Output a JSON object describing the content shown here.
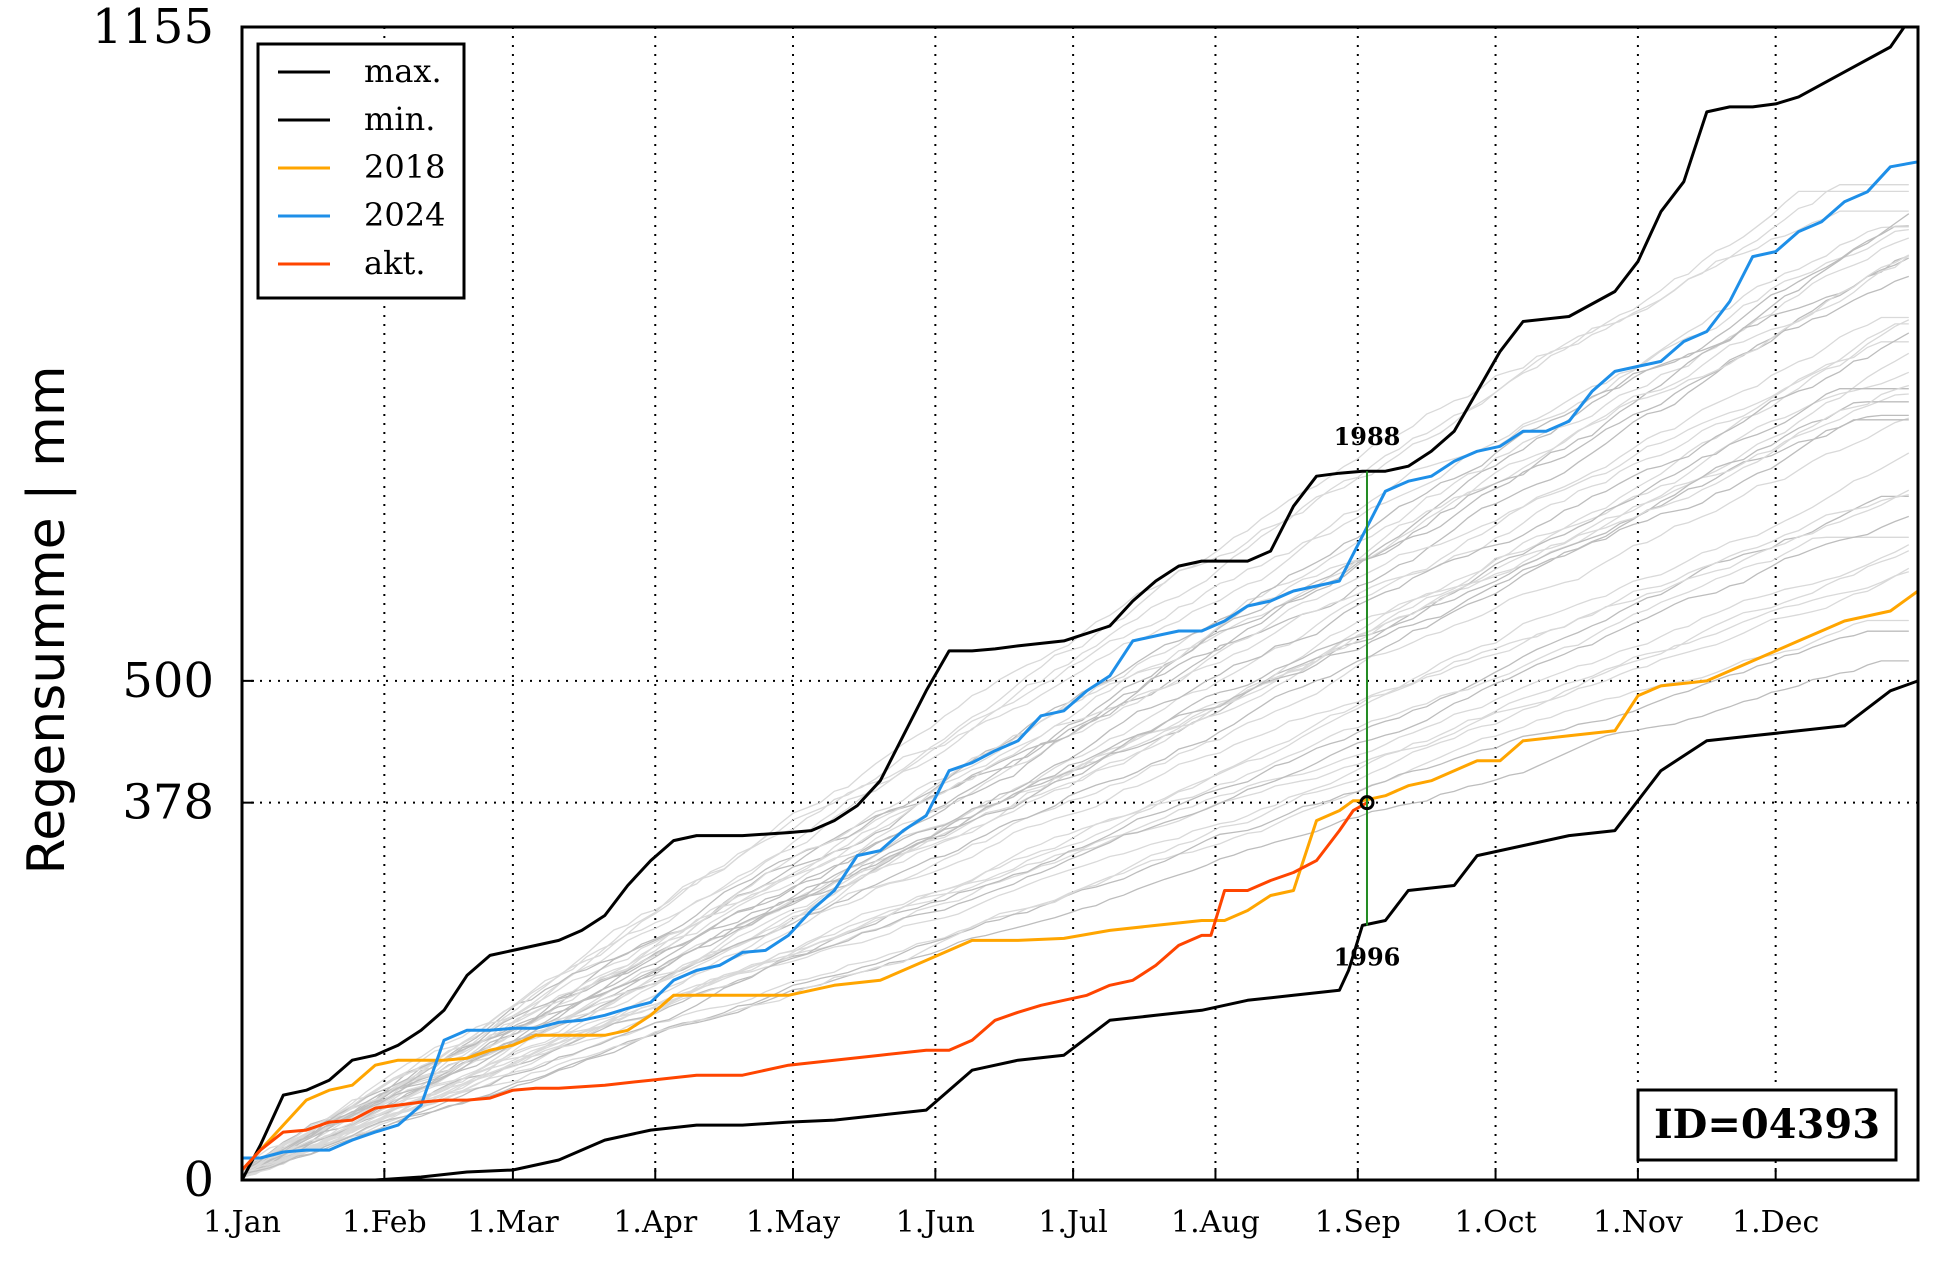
{
  "chart_data": {
    "type": "line",
    "title": "",
    "xlabel": "",
    "ylabel": "Regensumme | mm",
    "xlim": [
      1,
      366
    ],
    "ylim": [
      0,
      1155
    ],
    "x_ticks": [
      {
        "day": 1,
        "label": "1.Jan"
      },
      {
        "day": 32,
        "label": "1.Feb"
      },
      {
        "day": 60,
        "label": "1.Mar"
      },
      {
        "day": 91,
        "label": "1.Apr"
      },
      {
        "day": 121,
        "label": "1.May"
      },
      {
        "day": 152,
        "label": "1.Jun"
      },
      {
        "day": 182,
        "label": "1.Jul"
      },
      {
        "day": 213,
        "label": "1.Aug"
      },
      {
        "day": 244,
        "label": "1.Sep"
      },
      {
        "day": 274,
        "label": "1.Oct"
      },
      {
        "day": 305,
        "label": "1.Nov"
      },
      {
        "day": 335,
        "label": "1.Dec"
      }
    ],
    "y_ticks": [
      {
        "value": 0,
        "label": "0"
      },
      {
        "value": 378,
        "label": "378"
      },
      {
        "value": 500,
        "label": "500"
      },
      {
        "value": 1155,
        "label": "1155"
      }
    ],
    "grid": true,
    "legend_position": "top-left",
    "series": [
      {
        "name": "max.",
        "color": "#000000",
        "x": [
          1,
          5,
          10,
          15,
          20,
          25,
          30,
          35,
          40,
          45,
          50,
          55,
          60,
          65,
          70,
          75,
          80,
          85,
          90,
          95,
          100,
          110,
          120,
          125,
          130,
          135,
          140,
          145,
          150,
          155,
          160,
          165,
          170,
          180,
          190,
          195,
          200,
          205,
          210,
          215,
          220,
          225,
          230,
          235,
          240,
          245,
          250,
          255,
          260,
          265,
          270,
          275,
          280,
          290,
          300,
          305,
          310,
          315,
          320,
          325,
          330,
          335,
          340,
          350,
          360,
          363,
          366
        ],
        "values": [
          0,
          35,
          85,
          90,
          100,
          120,
          125,
          135,
          150,
          170,
          205,
          225,
          230,
          235,
          240,
          250,
          265,
          295,
          320,
          340,
          345,
          345,
          348,
          350,
          360,
          375,
          400,
          445,
          490,
          530,
          530,
          532,
          535,
          540,
          555,
          580,
          600,
          615,
          620,
          620,
          620,
          630,
          675,
          705,
          708,
          710,
          710,
          715,
          730,
          750,
          790,
          830,
          860,
          865,
          890,
          920,
          970,
          1000,
          1070,
          1075,
          1075,
          1078,
          1085,
          1110,
          1135,
          1155,
          1155
        ]
      },
      {
        "name": "min.",
        "color": "#000000",
        "x": [
          1,
          20,
          30,
          40,
          50,
          60,
          70,
          80,
          90,
          100,
          110,
          120,
          130,
          140,
          150,
          155,
          160,
          170,
          180,
          190,
          200,
          210,
          220,
          230,
          240,
          242,
          245,
          250,
          255,
          265,
          270,
          275,
          280,
          290,
          300,
          305,
          310,
          320,
          330,
          340,
          350,
          360,
          366
        ],
        "values": [
          0,
          0,
          0,
          3,
          8,
          10,
          20,
          40,
          50,
          55,
          55,
          58,
          60,
          65,
          70,
          90,
          110,
          120,
          125,
          160,
          165,
          170,
          180,
          185,
          190,
          210,
          255,
          260,
          290,
          295,
          325,
          330,
          335,
          345,
          350,
          380,
          410,
          440,
          445,
          450,
          455,
          490,
          500
        ]
      },
      {
        "name": "2018",
        "color": "#ffa500",
        "x": [
          1,
          5,
          10,
          15,
          20,
          25,
          30,
          35,
          40,
          45,
          50,
          55,
          60,
          65,
          70,
          75,
          80,
          85,
          90,
          95,
          100,
          110,
          120,
          130,
          140,
          150,
          160,
          170,
          180,
          190,
          200,
          210,
          215,
          220,
          225,
          230,
          235,
          240,
          243,
          245,
          250,
          255,
          260,
          265,
          270,
          275,
          280,
          290,
          300,
          305,
          310,
          320,
          330,
          335,
          340,
          350,
          360,
          366
        ],
        "values": [
          10,
          30,
          55,
          80,
          90,
          95,
          115,
          120,
          120,
          120,
          122,
          130,
          135,
          145,
          145,
          145,
          145,
          150,
          165,
          185,
          185,
          185,
          185,
          195,
          200,
          220,
          240,
          240,
          242,
          250,
          255,
          260,
          260,
          270,
          285,
          290,
          360,
          370,
          380,
          380,
          385,
          395,
          400,
          410,
          420,
          420,
          440,
          445,
          450,
          485,
          495,
          500,
          520,
          530,
          540,
          560,
          570,
          590
        ]
      },
      {
        "name": "2024",
        "color": "#1e8fe8",
        "x": [
          1,
          5,
          10,
          15,
          20,
          25,
          30,
          35,
          40,
          45,
          50,
          55,
          60,
          65,
          70,
          75,
          80,
          85,
          90,
          95,
          100,
          105,
          110,
          115,
          120,
          125,
          130,
          135,
          140,
          145,
          150,
          155,
          160,
          165,
          170,
          175,
          180,
          185,
          190,
          195,
          200,
          205,
          210,
          215,
          220,
          225,
          230,
          235,
          240,
          245,
          250,
          255,
          260,
          265,
          270,
          275,
          280,
          285,
          290,
          295,
          300,
          305,
          310,
          315,
          320,
          325,
          330,
          335,
          340,
          345,
          350,
          355,
          360,
          366
        ],
        "values": [
          22,
          22,
          28,
          30,
          30,
          40,
          48,
          55,
          75,
          140,
          150,
          150,
          152,
          152,
          158,
          160,
          165,
          172,
          178,
          200,
          210,
          215,
          228,
          230,
          245,
          270,
          290,
          325,
          330,
          350,
          365,
          410,
          418,
          430,
          440,
          465,
          470,
          490,
          505,
          540,
          545,
          550,
          550,
          560,
          575,
          580,
          590,
          595,
          600,
          645,
          690,
          700,
          705,
          720,
          730,
          735,
          750,
          750,
          760,
          790,
          810,
          815,
          820,
          840,
          850,
          880,
          925,
          930,
          950,
          960,
          980,
          990,
          1015,
          1020
        ]
      },
      {
        "name": "akt.",
        "color": "#ff4500",
        "x": [
          1,
          5,
          10,
          15,
          20,
          25,
          30,
          35,
          40,
          45,
          50,
          55,
          60,
          65,
          70,
          80,
          90,
          100,
          110,
          120,
          130,
          140,
          150,
          155,
          160,
          165,
          170,
          175,
          180,
          185,
          190,
          195,
          200,
          205,
          210,
          212,
          215,
          220,
          225,
          230,
          235,
          240,
          243,
          246
        ],
        "values": [
          10,
          30,
          48,
          50,
          58,
          60,
          72,
          75,
          78,
          80,
          80,
          82,
          90,
          92,
          92,
          95,
          100,
          105,
          105,
          115,
          120,
          125,
          130,
          130,
          140,
          160,
          168,
          175,
          180,
          185,
          195,
          200,
          215,
          235,
          245,
          245,
          290,
          290,
          300,
          308,
          320,
          350,
          370,
          378
        ]
      }
    ],
    "background_series_note_hidden": true,
    "annotations": [
      {
        "text": "1988",
        "x": 246,
        "y": 710
      },
      {
        "text": "1996",
        "x": 246,
        "y": 255
      }
    ],
    "current_point": {
      "x": 246,
      "y": 378
    },
    "marker_line": {
      "x": 246,
      "y_from": 255,
      "y_to": 710,
      "color": "#228b22"
    }
  },
  "legend": {
    "items": [
      {
        "label": "max.",
        "color": "#000000"
      },
      {
        "label": "min.",
        "color": "#000000"
      },
      {
        "label": "2018",
        "color": "#ffa500"
      },
      {
        "label": "2024",
        "color": "#1e8fe8"
      },
      {
        "label": "akt.",
        "color": "#ff4500"
      }
    ]
  },
  "id_box": {
    "text": "ID=04393"
  }
}
